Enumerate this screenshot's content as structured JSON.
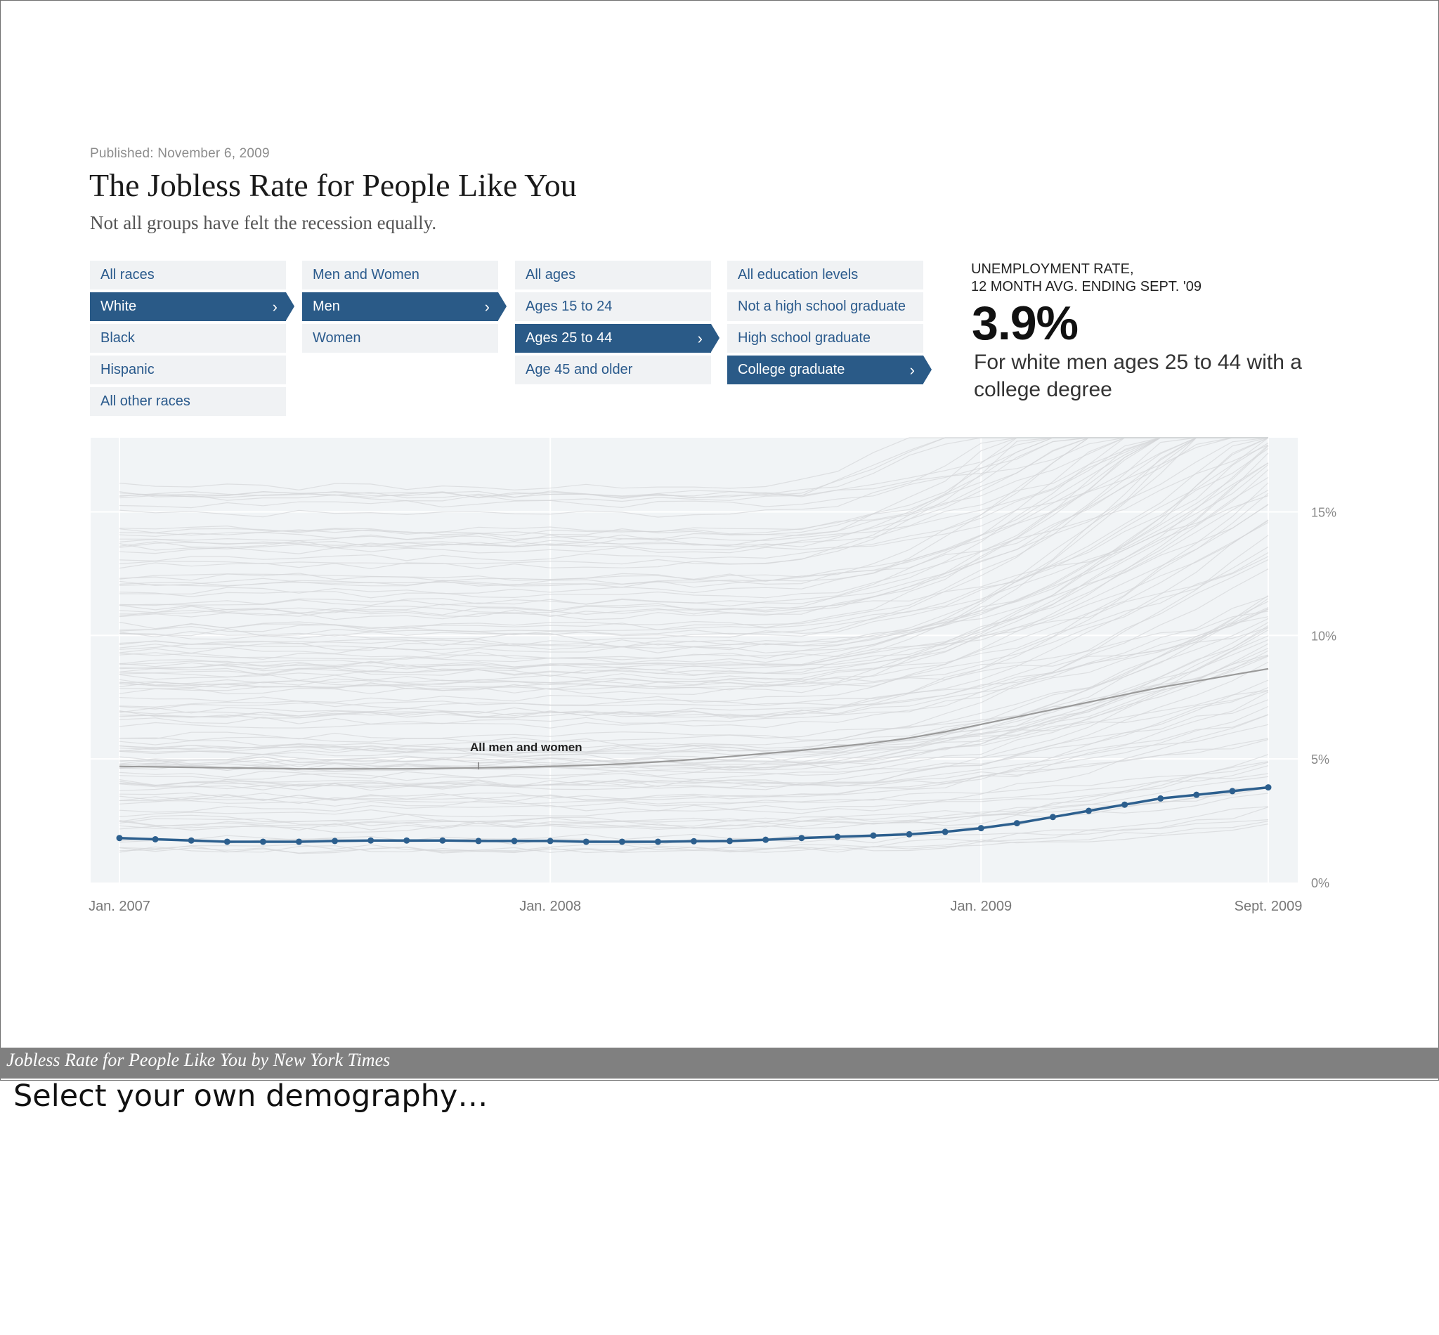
{
  "published": "Published: November 6, 2009",
  "title": "The Jobless Rate for People Like You",
  "subtitle": "Not all groups have felt the recession equally.",
  "selectors": [
    {
      "name": "race",
      "options": [
        "All races",
        "White",
        "Black",
        "Hispanic",
        "All other races"
      ],
      "selected": 1
    },
    {
      "name": "sex",
      "options": [
        "Men and Women",
        "Men",
        "Women"
      ],
      "selected": 1
    },
    {
      "name": "age",
      "options": [
        "All ages",
        "Ages 15 to 24",
        "Ages 25 to 44",
        "Age 45 and older"
      ],
      "selected": 2
    },
    {
      "name": "education",
      "options": [
        "All education levels",
        "Not a high school graduate",
        "High school graduate",
        "College graduate"
      ],
      "selected": 3
    }
  ],
  "chevron": "›",
  "rate": {
    "label_line1": "UNEMPLOYMENT RATE,",
    "label_line2": "12 MONTH AVG. ENDING SEPT. '09",
    "value": "3.9%",
    "description": "For white men ages 25 to 44 with a college degree"
  },
  "chart_data": {
    "type": "line",
    "x_tick_labels": [
      "Jan. 2007",
      "Jan. 2008",
      "Jan. 2009",
      "Sept. 2009"
    ],
    "y_tick_labels": [
      "15%",
      "10%",
      "5%",
      "0%"
    ],
    "y_ticks": [
      15,
      10,
      5,
      0
    ],
    "ylim": [
      0,
      18
    ],
    "grid": true,
    "annotation": "All men and women",
    "series": [
      {
        "role": "selected",
        "color": "#2c5f8e",
        "values": [
          1.8,
          1.75,
          1.7,
          1.65,
          1.65,
          1.65,
          1.68,
          1.7,
          1.7,
          1.7,
          1.68,
          1.68,
          1.68,
          1.65,
          1.65,
          1.65,
          1.67,
          1.68,
          1.73,
          1.8,
          1.85,
          1.9,
          1.95,
          2.05,
          2.2,
          2.4,
          2.65,
          2.9,
          3.15,
          3.4,
          3.55,
          3.7,
          3.85
        ]
      },
      {
        "role": "reference",
        "color": "#9a9a9a",
        "values": [
          4.7,
          4.68,
          4.66,
          4.64,
          4.62,
          4.6,
          4.6,
          4.6,
          4.6,
          4.62,
          4.64,
          4.66,
          4.7,
          4.74,
          4.8,
          4.88,
          4.98,
          5.1,
          5.22,
          5.35,
          5.5,
          5.65,
          5.85,
          6.1,
          6.4,
          6.7,
          7.0,
          7.3,
          7.6,
          7.9,
          8.15,
          8.4,
          8.65
        ]
      }
    ],
    "background_lines": 120
  },
  "caption": "Jobless Rate for People Like You by New York Times",
  "note": "Select your own demography…"
}
